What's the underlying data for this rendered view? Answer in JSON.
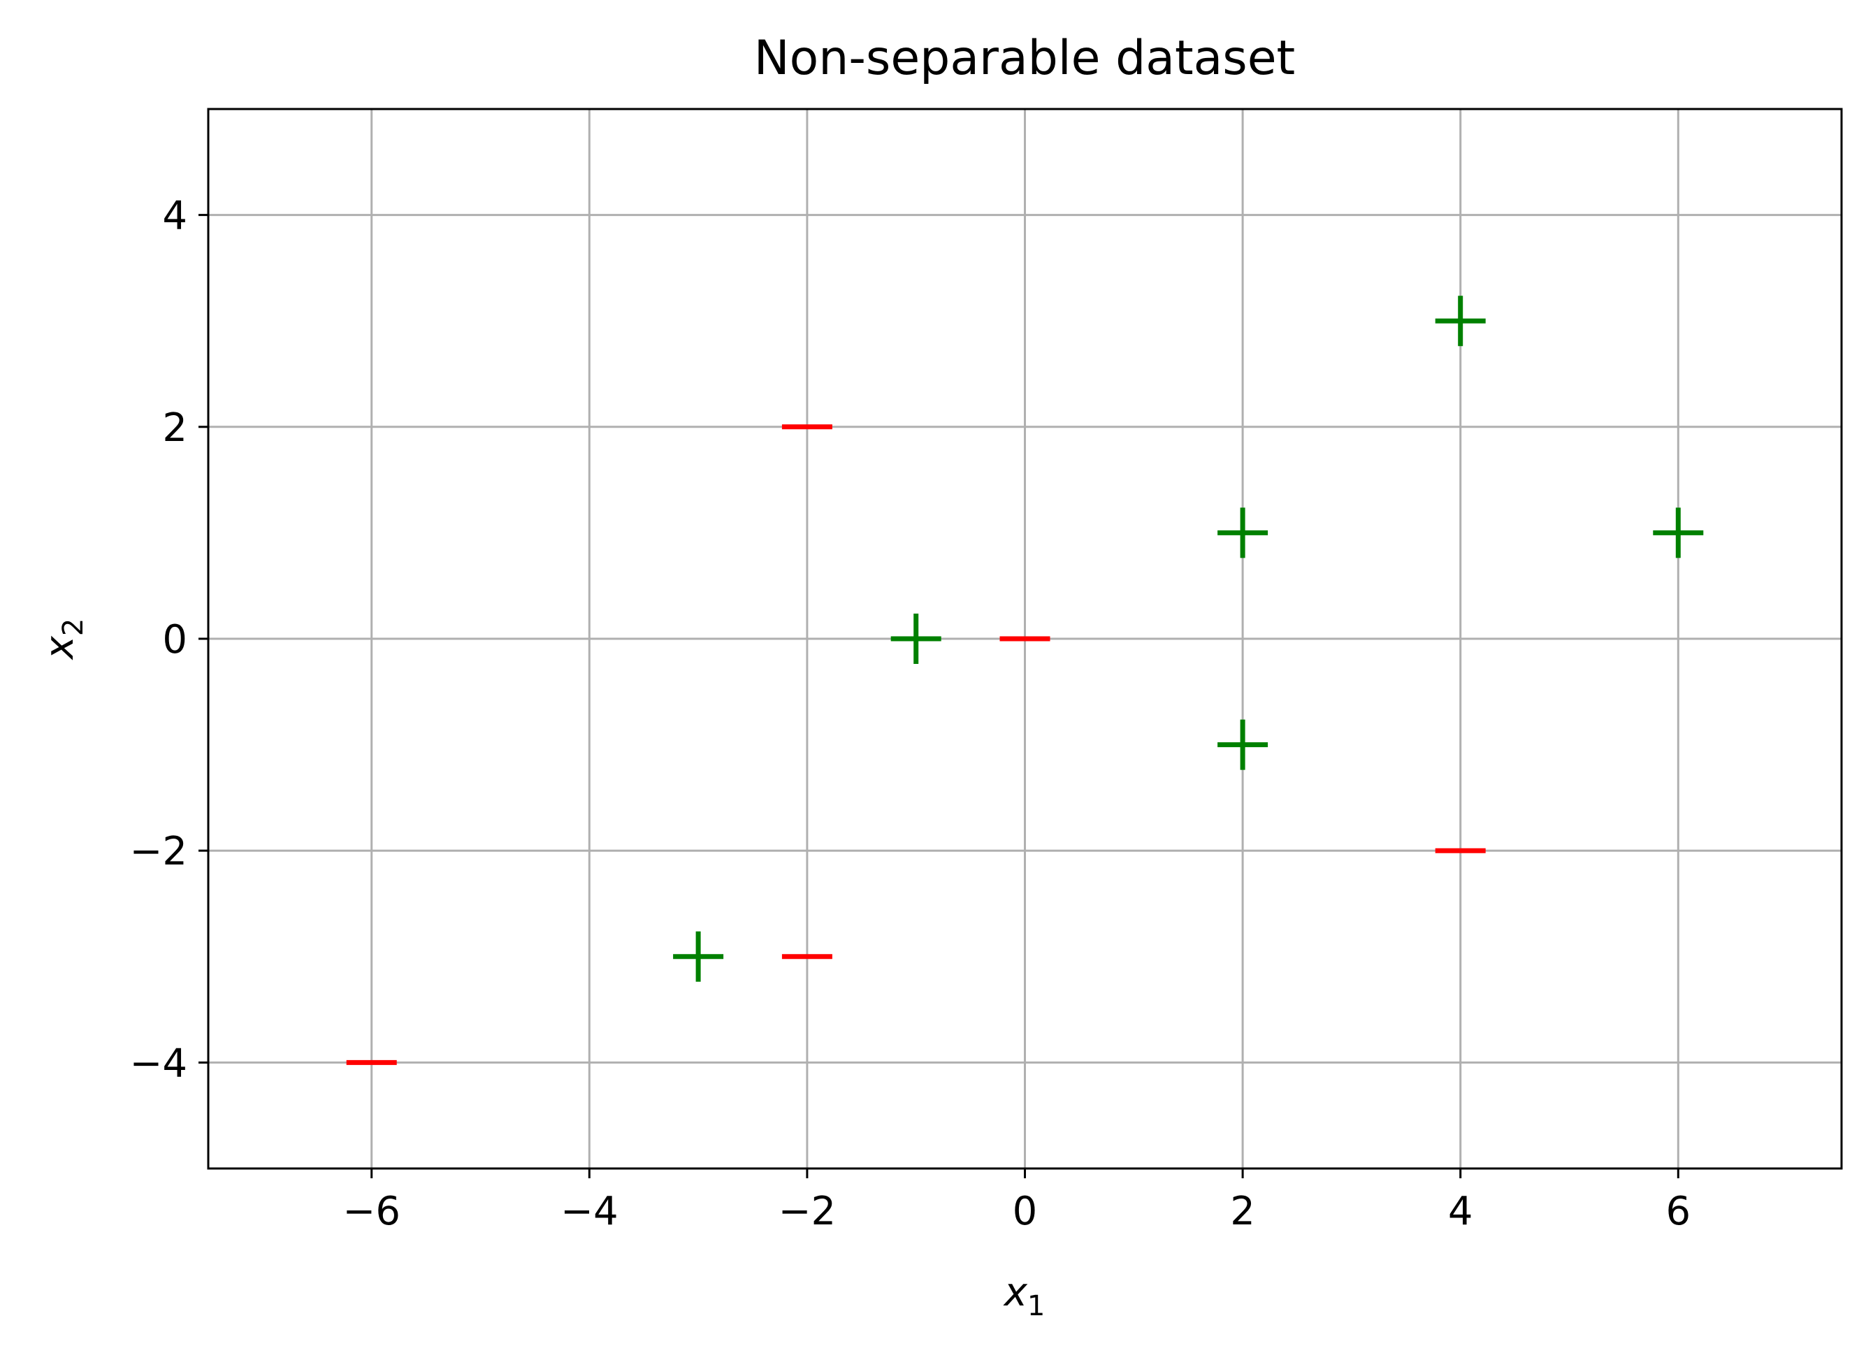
{
  "chart_data": {
    "type": "scatter",
    "title": "Non-separable dataset",
    "xlabel": {
      "base": "x",
      "sub": "1"
    },
    "ylabel": {
      "base": "x",
      "sub": "2"
    },
    "xlim": [
      -7.5,
      7.5
    ],
    "ylim": [
      -5,
      5
    ],
    "xticks": [
      -6,
      -4,
      -2,
      0,
      2,
      4,
      6
    ],
    "yticks": [
      -4,
      -2,
      0,
      2,
      4
    ],
    "xtick_labels": [
      "−6",
      "−4",
      "−2",
      "0",
      "2",
      "4",
      "6"
    ],
    "ytick_labels": [
      "−4",
      "−2",
      "0",
      "2",
      "4"
    ],
    "grid": true,
    "series": [
      {
        "marker": "plus",
        "color": "#008000",
        "points": [
          [
            4,
            3
          ],
          [
            2,
            1
          ],
          [
            6,
            1
          ],
          [
            -1,
            0
          ],
          [
            2,
            -1
          ],
          [
            -3,
            -3
          ]
        ]
      },
      {
        "marker": "minus",
        "color": "#ff0000",
        "points": [
          [
            -2,
            2
          ],
          [
            0,
            0
          ],
          [
            4,
            -2
          ],
          [
            -2,
            -3
          ],
          [
            -6,
            -4
          ]
        ]
      }
    ]
  }
}
